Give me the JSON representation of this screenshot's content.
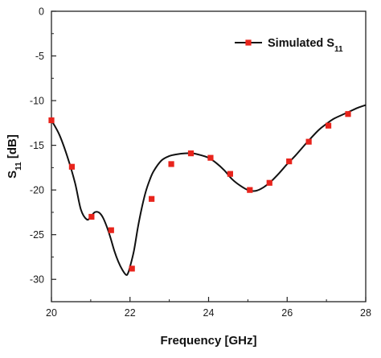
{
  "chart_data": {
    "type": "line",
    "title": "",
    "xlabel": "Frequency [GHz]",
    "ylabel_main": "S",
    "ylabel_sub": "11",
    "ylabel_suffix": " [dB]",
    "xlim": [
      20,
      28
    ],
    "ylim": [
      -32.5,
      0
    ],
    "xticks": [
      20,
      22,
      24,
      26,
      28
    ],
    "yticks": [
      0,
      -5,
      -10,
      -15,
      -20,
      -25,
      -30
    ],
    "grid": false,
    "legend_position": "top-right",
    "series": [
      {
        "name_main": "Simulated S",
        "name_sub": "11",
        "color": "#111111",
        "marker_color": "#e8241c",
        "curve": {
          "x": [
            20.0,
            20.2,
            20.4,
            20.6,
            20.75,
            20.9,
            21.0,
            21.1,
            21.2,
            21.3,
            21.4,
            21.5,
            21.6,
            21.7,
            21.8,
            21.9,
            21.95,
            22.0,
            22.1,
            22.2,
            22.3,
            22.4,
            22.5,
            22.6,
            22.8,
            23.0,
            23.2,
            23.4,
            23.6,
            23.8,
            24.0,
            24.2,
            24.4,
            24.6,
            24.8,
            25.0,
            25.2,
            25.4,
            25.6,
            25.8,
            26.0,
            26.2,
            26.5,
            26.8,
            27.0,
            27.2,
            27.5,
            27.8,
            28.0
          ],
          "y": [
            -12.2,
            -13.8,
            -16.2,
            -19.2,
            -22.2,
            -23.3,
            -23.0,
            -22.5,
            -22.5,
            -23.0,
            -24.0,
            -25.3,
            -26.8,
            -28.0,
            -28.9,
            -29.5,
            -29.3,
            -28.6,
            -26.8,
            -24.2,
            -22.0,
            -20.2,
            -18.9,
            -17.9,
            -16.7,
            -16.2,
            -16.0,
            -15.9,
            -15.9,
            -16.1,
            -16.4,
            -17.0,
            -17.8,
            -18.8,
            -19.5,
            -20.0,
            -20.1,
            -19.7,
            -19.0,
            -18.1,
            -17.1,
            -16.2,
            -14.7,
            -13.3,
            -12.6,
            -12.0,
            -11.4,
            -10.8,
            -10.5
          ]
        },
        "markers": {
          "x": [
            20.0,
            20.52,
            21.02,
            21.52,
            22.05,
            22.55,
            23.05,
            23.55,
            24.05,
            24.55,
            25.05,
            25.55,
            26.05,
            26.55,
            27.05,
            27.55
          ],
          "y": [
            -12.2,
            -17.4,
            -23.0,
            -24.5,
            -28.8,
            -21.0,
            -17.1,
            -15.9,
            -16.4,
            -18.2,
            -20.0,
            -19.2,
            -16.8,
            -14.6,
            -12.8,
            -11.5
          ]
        }
      }
    ]
  }
}
